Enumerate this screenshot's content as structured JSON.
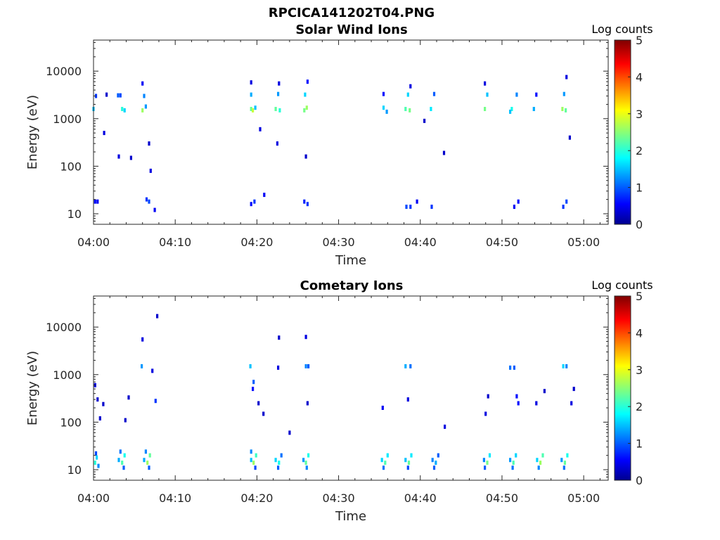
{
  "figure_title": "RPCICA141202T04.PNG",
  "colormap": [
    "#00008f",
    "#0000ff",
    "#00ffff",
    "#ffff00",
    "#ff0000",
    "#800000"
  ],
  "chart_data": [
    {
      "type": "heatmap",
      "title": "Solar Wind Ions",
      "xlabel": "Time",
      "ylabel": "Energy (eV)",
      "x_ticks": [
        "04:00",
        "04:10",
        "04:20",
        "04:30",
        "04:40",
        "04:50",
        "05:00"
      ],
      "x_range_minutes": [
        0,
        63
      ],
      "y_scale": "log",
      "y_ticks": [
        "10",
        "100",
        "1000",
        "10000"
      ],
      "y_range": [
        6,
        45000
      ],
      "colorbar": {
        "label": "Log counts",
        "ticks": [
          "0",
          "1",
          "2",
          "3",
          "4",
          "5"
        ],
        "range": [
          0,
          5
        ]
      },
      "bursts_minutes": [
        0,
        3,
        6,
        19.5,
        22.5,
        26,
        35.5,
        38.5,
        41.5,
        48,
        51.5,
        54.5,
        57.5
      ],
      "cells": [
        [
          0,
          1600,
          1.5
        ],
        [
          0.3,
          3000,
          0.8
        ],
        [
          0.2,
          18,
          0.6
        ],
        [
          0.5,
          18,
          0.5
        ],
        [
          1.3,
          500,
          0.4
        ],
        [
          1.6,
          3200,
          0.3
        ],
        [
          3.0,
          3100,
          1.0
        ],
        [
          3.3,
          3100,
          0.9
        ],
        [
          3.5,
          1600,
          2.0
        ],
        [
          3.8,
          1500,
          1.6
        ],
        [
          3.1,
          160,
          0.4
        ],
        [
          4.6,
          150,
          0.3
        ],
        [
          6.0,
          1500,
          2.6
        ],
        [
          6.2,
          3000,
          1.2
        ],
        [
          6.4,
          1800,
          1.3
        ],
        [
          6.0,
          5500,
          0.5
        ],
        [
          6.5,
          20,
          0.8
        ],
        [
          6.8,
          18,
          0.9
        ],
        [
          7.5,
          12,
          0.5
        ],
        [
          6.8,
          300,
          0.3
        ],
        [
          7.0,
          80,
          0.4
        ],
        [
          19.3,
          1600,
          2.3
        ],
        [
          19.5,
          1500,
          2.8
        ],
        [
          19.8,
          1700,
          1.5
        ],
        [
          19.3,
          3200,
          1.4
        ],
        [
          19.3,
          5800,
          0.4
        ],
        [
          19.7,
          18,
          0.8
        ],
        [
          19.3,
          16,
          0.6
        ],
        [
          20.4,
          600,
          0.4
        ],
        [
          20.9,
          25,
          0.5
        ],
        [
          22.3,
          1600,
          2.3
        ],
        [
          22.8,
          1500,
          2.0
        ],
        [
          22.6,
          3300,
          1.3
        ],
        [
          22.7,
          5500,
          0.4
        ],
        [
          22.5,
          300,
          0.4
        ],
        [
          25.8,
          1500,
          2.4
        ],
        [
          26.1,
          1700,
          2.6
        ],
        [
          25.9,
          3200,
          1.6
        ],
        [
          26.2,
          6000,
          0.6
        ],
        [
          25.8,
          18,
          0.7
        ],
        [
          26.2,
          16,
          0.8
        ],
        [
          26.0,
          160,
          0.3
        ],
        [
          35.5,
          1700,
          1.6
        ],
        [
          35.9,
          1400,
          1.3
        ],
        [
          35.5,
          3300,
          0.6
        ],
        [
          38.2,
          1600,
          2.2
        ],
        [
          38.7,
          1500,
          2.4
        ],
        [
          38.5,
          3200,
          1.6
        ],
        [
          38.8,
          4800,
          0.4
        ],
        [
          38.3,
          14,
          0.9
        ],
        [
          38.8,
          14,
          0.8
        ],
        [
          39.6,
          18,
          0.5
        ],
        [
          41.3,
          1600,
          1.7
        ],
        [
          41.7,
          3300,
          1.0
        ],
        [
          41.4,
          14,
          0.8
        ],
        [
          42.9,
          190,
          0.3
        ],
        [
          40.5,
          900,
          0.3
        ],
        [
          47.9,
          1600,
          2.4
        ],
        [
          48.2,
          3200,
          1.5
        ],
        [
          47.9,
          5500,
          0.4
        ],
        [
          51.2,
          1600,
          1.9
        ],
        [
          51.0,
          1400,
          1.5
        ],
        [
          51.8,
          3200,
          1.2
        ],
        [
          51.5,
          14,
          0.5
        ],
        [
          52.0,
          18,
          0.6
        ],
        [
          53.9,
          1600,
          1.4
        ],
        [
          54.2,
          3200,
          0.6
        ],
        [
          57.4,
          1600,
          2.6
        ],
        [
          57.8,
          1500,
          2.3
        ],
        [
          57.6,
          3300,
          1.3
        ],
        [
          57.9,
          7500,
          0.4
        ],
        [
          57.5,
          14,
          0.8
        ],
        [
          57.9,
          18,
          0.9
        ],
        [
          58.3,
          400,
          0.3
        ]
      ]
    },
    {
      "type": "heatmap",
      "title": "Cometary Ions",
      "xlabel": "Time",
      "ylabel": "Energy (eV)",
      "x_ticks": [
        "04:00",
        "04:10",
        "04:20",
        "04:30",
        "04:40",
        "04:50",
        "05:00"
      ],
      "x_range_minutes": [
        0,
        63
      ],
      "y_scale": "log",
      "y_ticks": [
        "10",
        "100",
        "1000",
        "10000"
      ],
      "y_range": [
        6,
        45000
      ],
      "colorbar": {
        "label": "Log counts",
        "ticks": [
          "0",
          "1",
          "2",
          "3",
          "4",
          "5"
        ],
        "range": [
          0,
          5
        ]
      },
      "cells": [
        [
          0.2,
          14,
          2.0
        ],
        [
          0.4,
          18,
          1.6
        ],
        [
          0.6,
          12,
          1.2
        ],
        [
          0.3,
          22,
          0.9
        ],
        [
          0.2,
          600,
          0.4
        ],
        [
          0.5,
          300,
          0.3
        ],
        [
          1.2,
          240,
          0.3
        ],
        [
          0.8,
          120,
          0.3
        ],
        [
          3.1,
          16,
          1.4
        ],
        [
          3.5,
          14,
          2.2
        ],
        [
          3.8,
          20,
          1.9
        ],
        [
          3.3,
          24,
          1.1
        ],
        [
          3.7,
          11,
          1.0
        ],
        [
          3.9,
          110,
          0.3
        ],
        [
          4.3,
          330,
          0.3
        ],
        [
          6.2,
          16,
          1.4
        ],
        [
          6.6,
          14,
          2.6
        ],
        [
          6.9,
          20,
          2.3
        ],
        [
          6.4,
          24,
          1.2
        ],
        [
          6.8,
          11,
          1.0
        ],
        [
          5.9,
          1500,
          1.3
        ],
        [
          7.6,
          280,
          0.8
        ],
        [
          7.2,
          1200,
          0.4
        ],
        [
          6.0,
          5500,
          0.4
        ],
        [
          7.8,
          17000,
          0.3
        ],
        [
          19.3,
          16,
          1.5
        ],
        [
          19.6,
          14,
          2.6
        ],
        [
          19.9,
          20,
          2.1
        ],
        [
          19.3,
          24,
          1.2
        ],
        [
          19.8,
          11,
          0.9
        ],
        [
          19.2,
          1500,
          1.5
        ],
        [
          19.6,
          700,
          1.0
        ],
        [
          19.5,
          500,
          0.6
        ],
        [
          20.2,
          250,
          0.3
        ],
        [
          20.8,
          150,
          0.3
        ],
        [
          22.3,
          16,
          1.6
        ],
        [
          22.7,
          14,
          1.9
        ],
        [
          23.0,
          20,
          1.1
        ],
        [
          22.6,
          11,
          1.0
        ],
        [
          22.6,
          1400,
          0.4
        ],
        [
          22.7,
          6000,
          0.3
        ],
        [
          24.0,
          60,
          0.3
        ],
        [
          25.7,
          16,
          1.3
        ],
        [
          26.0,
          14,
          2.3
        ],
        [
          26.3,
          20,
          1.9
        ],
        [
          26.1,
          11,
          1.2
        ],
        [
          26.0,
          1500,
          1.2
        ],
        [
          26.3,
          1500,
          1.0
        ],
        [
          26.0,
          6200,
          0.4
        ],
        [
          26.2,
          250,
          0.3
        ],
        [
          35.3,
          16,
          1.6
        ],
        [
          35.7,
          14,
          2.2
        ],
        [
          36.0,
          20,
          1.7
        ],
        [
          35.5,
          11,
          1.1
        ],
        [
          35.4,
          200,
          0.5
        ],
        [
          38.2,
          16,
          1.5
        ],
        [
          38.6,
          14,
          2.3
        ],
        [
          38.9,
          20,
          1.7
        ],
        [
          38.5,
          11,
          0.9
        ],
        [
          38.2,
          1500,
          1.4
        ],
        [
          38.8,
          1500,
          1.1
        ],
        [
          38.5,
          300,
          0.4
        ],
        [
          41.5,
          16,
          1.2
        ],
        [
          41.9,
          14,
          1.4
        ],
        [
          42.2,
          20,
          1.0
        ],
        [
          41.7,
          11,
          1.0
        ],
        [
          43.0,
          80,
          0.4
        ],
        [
          47.8,
          16,
          1.2
        ],
        [
          48.2,
          14,
          2.4
        ],
        [
          48.5,
          20,
          1.7
        ],
        [
          47.9,
          11,
          1.0
        ],
        [
          48.0,
          150,
          0.4
        ],
        [
          48.3,
          350,
          0.3
        ],
        [
          51.0,
          16,
          1.3
        ],
        [
          51.4,
          14,
          2.2
        ],
        [
          51.7,
          20,
          1.6
        ],
        [
          51.3,
          11,
          1.1
        ],
        [
          51.0,
          1400,
          1.1
        ],
        [
          51.5,
          1400,
          1.0
        ],
        [
          51.8,
          350,
          0.6
        ],
        [
          52.0,
          250,
          0.6
        ],
        [
          54.3,
          16,
          1.6
        ],
        [
          54.7,
          14,
          2.6
        ],
        [
          55.0,
          20,
          2.2
        ],
        [
          54.5,
          11,
          1.2
        ],
        [
          54.2,
          250,
          0.4
        ],
        [
          55.2,
          450,
          0.3
        ],
        [
          57.3,
          16,
          1.3
        ],
        [
          57.7,
          14,
          2.3
        ],
        [
          58.0,
          20,
          1.9
        ],
        [
          57.6,
          11,
          1.1
        ],
        [
          57.5,
          1500,
          1.6
        ],
        [
          57.9,
          1500,
          1.2
        ],
        [
          58.5,
          250,
          0.4
        ],
        [
          58.8,
          500,
          0.3
        ]
      ]
    }
  ]
}
